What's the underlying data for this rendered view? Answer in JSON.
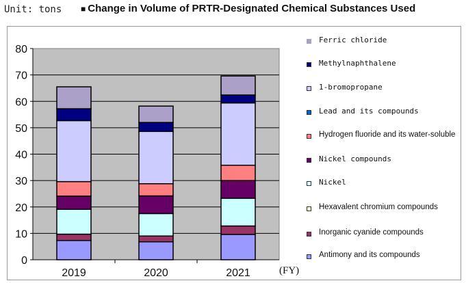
{
  "header": {
    "unit_label": "Unit: tons",
    "title_marker": "■",
    "title": "Change in Volume of PRTR-Designated Chemical Substances Used"
  },
  "chart_data": {
    "type": "bar",
    "stacked": true,
    "categories": [
      "2019",
      "2020",
      "2021"
    ],
    "xlabel": "(FY)",
    "ylim": [
      0,
      80
    ],
    "yticks": [
      0,
      10,
      20,
      30,
      40,
      50,
      60,
      70,
      80
    ],
    "grid": true,
    "legend_position": "right",
    "series": [
      {
        "name": "Antimony and its compounds",
        "color": "#9999ff",
        "values": [
          7.3,
          6.8,
          9.6
        ]
      },
      {
        "name": "Inorganic cyanide compounds",
        "color": "#993366",
        "values": [
          2.4,
          2.2,
          3.2
        ]
      },
      {
        "name": "Hexavalent chromium compounds",
        "color": "#ffffcc",
        "values": [
          0,
          0,
          0
        ]
      },
      {
        "name": "Nickel",
        "color": "#ccffff",
        "values": [
          9.4,
          8.5,
          10.5
        ]
      },
      {
        "name": "Nickel compounds",
        "color": "#660066",
        "values": [
          5.0,
          6.7,
          6.7
        ]
      },
      {
        "name": "Hydrogen fluoride and its water-soluble",
        "color": "#ff8080",
        "values": [
          5.5,
          4.6,
          5.8
        ]
      },
      {
        "name": "Lead and its compounds",
        "color": "#0066cc",
        "values": [
          0,
          0,
          0
        ]
      },
      {
        "name": "1-bromopropane",
        "color": "#ccccff",
        "values": [
          23.1,
          19.8,
          23.6
        ]
      },
      {
        "name": "Methylnaphthalene",
        "color": "#000080",
        "values": [
          4.5,
          3.4,
          3.0
        ]
      },
      {
        "name": "Ferric chloride",
        "color": "#aaa0c8",
        "values": [
          8.3,
          6.2,
          7.2
        ]
      }
    ]
  }
}
